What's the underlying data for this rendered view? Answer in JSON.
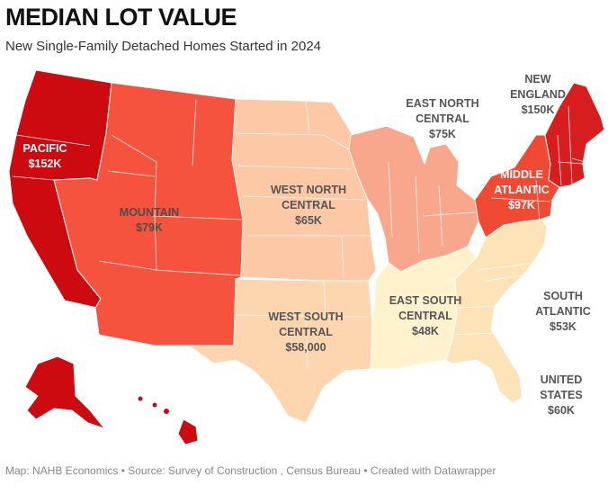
{
  "title": "MEDIAN LOT VALUE",
  "subtitle": "New Single-Family Detached Homes Started in 2024",
  "footer": "Map: NAHB Economics • Source: Survey of Construction , Census Bureau • Created with Datawrapper",
  "colors": {
    "pacific": "#cc0a10",
    "new_england": "#d71d1d",
    "mountain": "#f5533d",
    "middle_atlantic": "#f04a34",
    "east_north_central": "#f9a78c",
    "west_north_central": "#fcc8a6",
    "west_south_central": "#fdd5ae",
    "south_atlantic": "#fde4b8",
    "east_south_central": "#fff2cc"
  },
  "regions": {
    "pacific": {
      "name": "PACIFIC",
      "value": "$152K"
    },
    "mountain": {
      "name": "MOUNTAIN",
      "value": "$79K"
    },
    "west_north_central": {
      "name_line1": "WEST NORTH",
      "name_line2": "CENTRAL",
      "value": "$65K"
    },
    "east_north_central": {
      "name_line1": "EAST NORTH",
      "name_line2": "CENTRAL",
      "value": "$75K"
    },
    "new_england": {
      "name_line1": "NEW",
      "name_line2": "ENGLAND",
      "value": "$150K"
    },
    "middle_atlantic": {
      "name_line1": "MIDDLE",
      "name_line2": "ATLANTIC",
      "value": "$97K"
    },
    "west_south_central": {
      "name_line1": "WEST SOUTH",
      "name_line2": "CENTRAL",
      "value": "$58,000"
    },
    "east_south_central": {
      "name_line1": "EAST SOUTH",
      "name_line2": "CENTRAL",
      "value": "$48K"
    },
    "south_atlantic": {
      "name_line1": "SOUTH",
      "name_line2": "ATLANTIC",
      "value": "$53K"
    },
    "united_states": {
      "name_line1": "UNITED",
      "name_line2": "STATES",
      "value": "$60K"
    }
  }
}
